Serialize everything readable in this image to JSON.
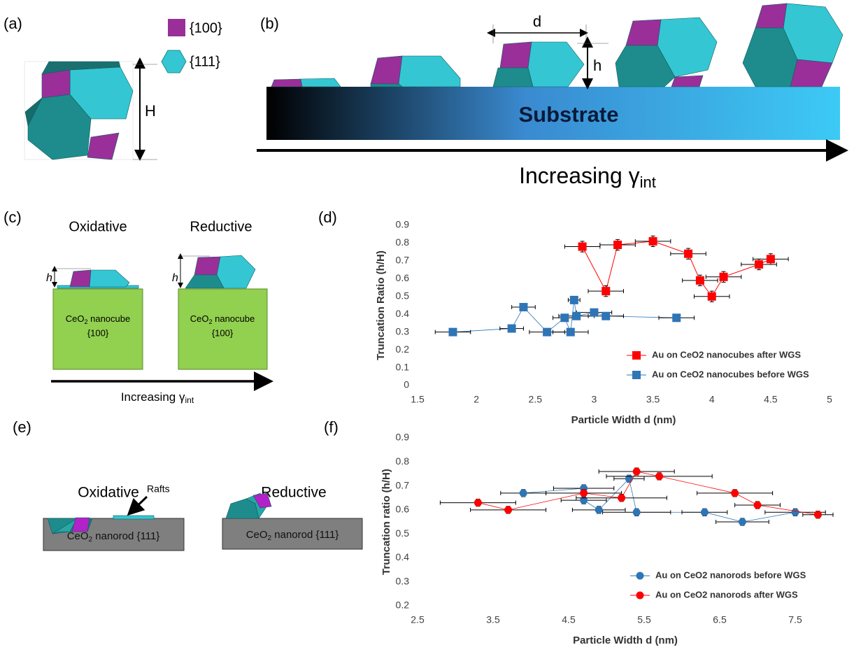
{
  "panel_labels": [
    "(a)",
    "(b)",
    "(c)",
    "(d)",
    "(e)",
    "(f)"
  ],
  "diagram": {
    "facet_100": "{100}",
    "facet_111": "{111}",
    "H": "H",
    "d": "d",
    "h": "h",
    "substrate": "Substrate",
    "increasing": "Increasing γ",
    "int": "int",
    "oxidative": "Oxidative",
    "reductive": "Reductive",
    "ceo": "CeO",
    "sub2": "2",
    "nanocube": " nanocube",
    "nanorod": " nanorod {111}",
    "rafts": "Rafts"
  },
  "chart_data": [
    {
      "type": "line",
      "xlabel": "Particle Width d (nm)",
      "ylabel": "Truncation Ratio (h/H)",
      "xlim": [
        1.5,
        5
      ],
      "xticks": [
        1.5,
        2,
        2.5,
        3,
        3.5,
        4,
        4.5,
        5
      ],
      "ylim": [
        0,
        0.9
      ],
      "yticks": [
        0,
        0.1,
        0.2,
        0.3,
        0.4,
        0.5,
        0.6,
        0.7,
        0.8,
        0.9
      ],
      "marker": "square",
      "legend": "lower right",
      "series": [
        {
          "name": "Au on CeO2 nanocubes after WGS",
          "color": "#ff0000",
          "x": [
            2.9,
            3.1,
            3.2,
            3.5,
            3.8,
            3.9,
            4.0,
            4.1,
            4.4,
            4.5
          ],
          "values": [
            0.78,
            0.53,
            0.79,
            0.81,
            0.74,
            0.59,
            0.5,
            0.61,
            0.68,
            0.71
          ],
          "xerr": [
            0.15,
            0.15,
            0.15,
            0.15,
            0.15,
            0.15,
            0.15,
            0.15,
            0.15,
            0.15
          ],
          "yerr": [
            0.03,
            0.03,
            0.03,
            0.03,
            0.03,
            0.03,
            0.03,
            0.03,
            0.03,
            0.03
          ]
        },
        {
          "name": "Au on CeO2 nanocubes before WGS",
          "color": "#2e75b6",
          "x": [
            1.8,
            2.3,
            2.4,
            2.6,
            2.75,
            2.8,
            2.83,
            2.85,
            3.0,
            3.1,
            3.7
          ],
          "values": [
            0.3,
            0.32,
            0.44,
            0.3,
            0.38,
            0.3,
            0.48,
            0.39,
            0.41,
            0.39,
            0.38
          ],
          "xerr": [
            0.15,
            0.1,
            0.1,
            0.15,
            0.1,
            0.15,
            0.05,
            0.15,
            0.15,
            0.15,
            0.15
          ],
          "yerr": [
            0.015,
            0.015,
            0.015,
            0.015,
            0.015,
            0.015,
            0.015,
            0.015,
            0.015,
            0.015,
            0.015
          ]
        }
      ]
    },
    {
      "type": "line",
      "xlabel": "Particle Width d (nm)",
      "ylabel": "Truncation ratio (h/H)",
      "xlim": [
        2.5,
        8
      ],
      "xticks": [
        2.5,
        3.5,
        4.5,
        5.5,
        6.5,
        7.5
      ],
      "ylim": [
        0.2,
        0.9
      ],
      "yticks": [
        0.2,
        0.3,
        0.4,
        0.5,
        0.6,
        0.7,
        0.8,
        0.9
      ],
      "marker": "circle",
      "legend": "lower right",
      "series": [
        {
          "name": "Au on CeO2 nanorods before WGS",
          "color": "#2e75b6",
          "x": [
            3.9,
            4.7,
            4.7,
            4.9,
            5.3,
            5.4,
            6.3,
            6.8,
            7.5
          ],
          "values": [
            0.67,
            0.69,
            0.64,
            0.6,
            0.73,
            0.59,
            0.59,
            0.55,
            0.59
          ],
          "xerr": [
            0.3,
            0.4,
            0.3,
            0.35,
            0.2,
            0.45,
            0.3,
            0.35,
            0.4
          ],
          "yerr": [
            0.015,
            0.015,
            0.015,
            0.015,
            0.015,
            0.015,
            0.015,
            0.015,
            0.015
          ]
        },
        {
          "name": "Au on CeO2 nanorods after WGS",
          "color": "#ff0000",
          "x": [
            3.3,
            3.7,
            4.7,
            5.2,
            5.4,
            5.7,
            6.7,
            7.0,
            7.8
          ],
          "values": [
            0.63,
            0.6,
            0.67,
            0.65,
            0.76,
            0.74,
            0.67,
            0.62,
            0.58
          ],
          "xerr": [
            0.5,
            0.5,
            0.5,
            0.6,
            0.5,
            0.7,
            0.5,
            0.3,
            0.2
          ],
          "yerr": [
            0.015,
            0.015,
            0.015,
            0.015,
            0.015,
            0.015,
            0.015,
            0.015,
            0.015
          ]
        }
      ]
    }
  ]
}
